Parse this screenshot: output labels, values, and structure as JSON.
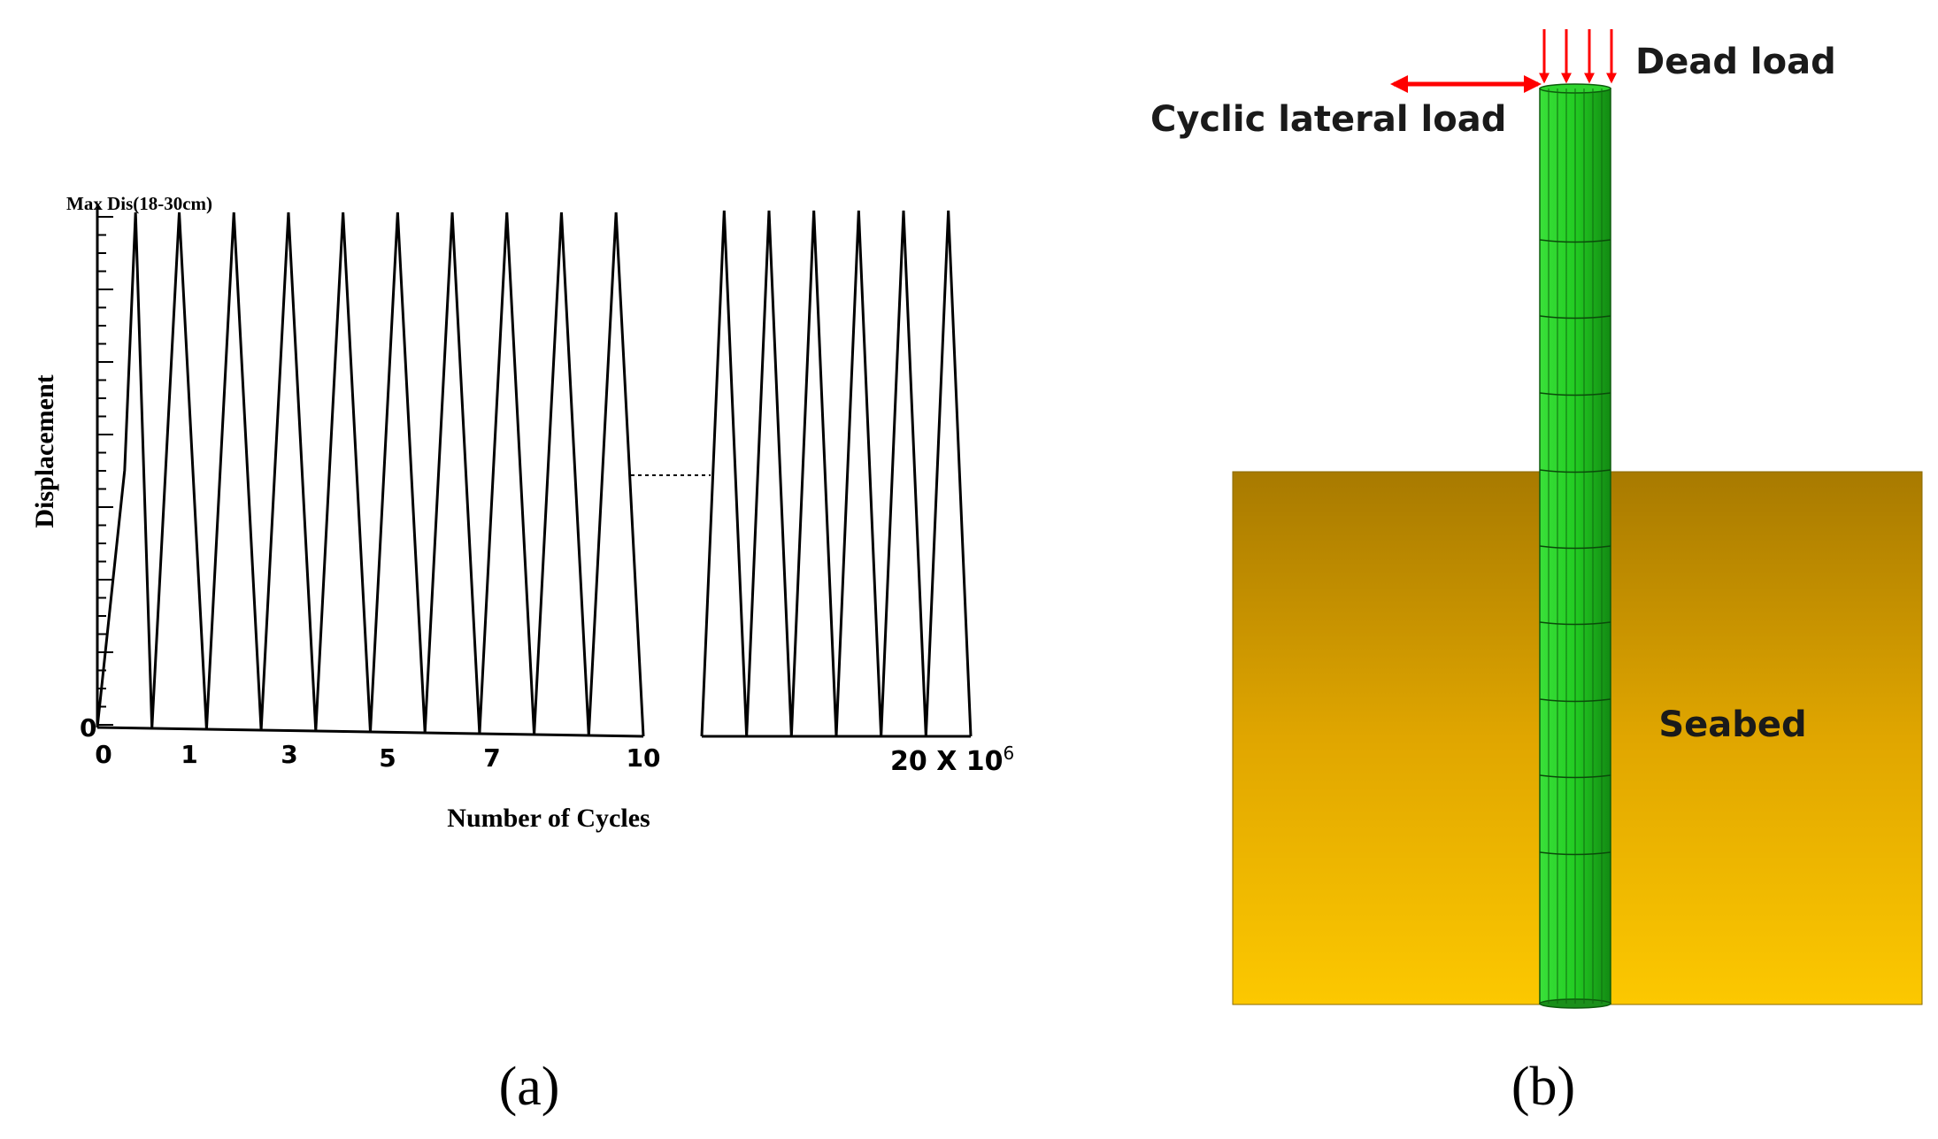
{
  "panel_a": {
    "caption": "(a)",
    "ylabel": "Displacement",
    "xlabel": "Number of Cycles",
    "max_label": "Max Dis(18-30cm)",
    "y_zero_label": "0",
    "x_tick_labels": [
      "0",
      "1",
      "3",
      "5",
      "7",
      "10"
    ],
    "x_end_label_main": "20 X 10",
    "x_end_label_sup": "6",
    "chart_data": {
      "type": "line",
      "title": "",
      "xlabel": "Number of Cycles",
      "ylabel": "Displacement",
      "segments": [
        {
          "x": [
            0,
            0.5,
            0.7,
            1,
            1.5,
            2,
            2.5,
            3,
            3.5,
            4,
            4.5,
            5,
            5.5,
            6,
            6.5,
            7,
            7.5,
            8,
            8.5,
            9,
            9.5,
            10
          ],
          "y": [
            0,
            0.5,
            1,
            0,
            1,
            0,
            1,
            0,
            1,
            0,
            1,
            0,
            1,
            0,
            1,
            0,
            1,
            0,
            1,
            0,
            1,
            0
          ]
        },
        {
          "x": [
            14,
            14.5,
            15,
            15.5,
            16,
            16.5,
            17,
            17.5,
            18,
            18.5,
            19,
            19.5,
            20
          ],
          "y": [
            0,
            1,
            0,
            1,
            0,
            1,
            0,
            1,
            0,
            1,
            0,
            1,
            0
          ]
        }
      ],
      "y_units_note": "1 = Max Dis(18-30cm)"
    }
  },
  "panel_b": {
    "caption": "(b)",
    "dead_load_label": "Dead load",
    "lateral_load_label": "Cyclic lateral load",
    "seabed_label": "Seabed",
    "colors": {
      "pile": "#22cc22",
      "pile_dark": "#1a8f1a",
      "seabed_top": "#a87a00",
      "seabed_bottom": "#fcc800",
      "arrow": "#ff0000"
    }
  }
}
